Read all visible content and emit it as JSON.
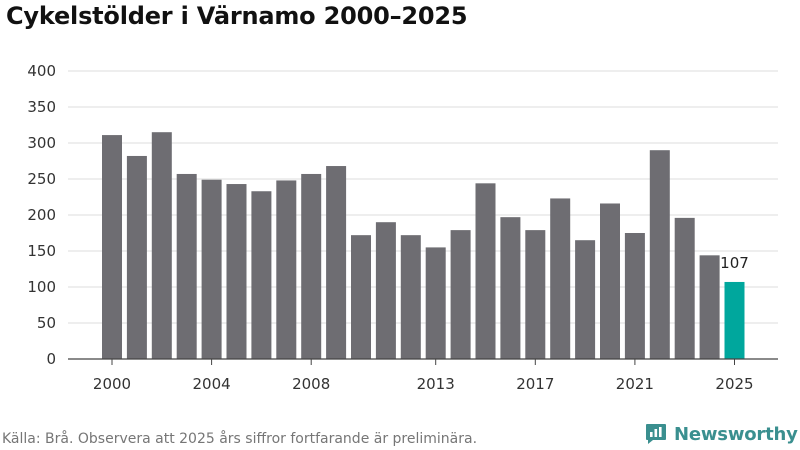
{
  "title": "Cykelstölder i Värnamo 2000–2025",
  "footer": {
    "source": "Källa: Brå. Observera att 2025 års siffror fortfarande är preliminära.",
    "brand": "Newsworthy",
    "brand_icon": "newsworthy-logo-icon",
    "brand_color": "#3a8f8f"
  },
  "chart_data": {
    "type": "bar",
    "title": "Cykelstölder i Värnamo 2000–2025",
    "xlabel": "",
    "ylabel": "",
    "ylim": [
      0,
      400
    ],
    "yticks": [
      0,
      50,
      100,
      150,
      200,
      250,
      300,
      350,
      400
    ],
    "xtick_labels": [
      "2000",
      "2004",
      "2008",
      "2013",
      "2017",
      "2021",
      "2025"
    ],
    "grid": true,
    "categories": [
      "2000",
      "2001",
      "2002",
      "2003",
      "2004",
      "2005",
      "2006",
      "2007",
      "2008",
      "2009",
      "2010",
      "2011",
      "2012",
      "2013",
      "2014",
      "2015",
      "2016",
      "2017",
      "2018",
      "2019",
      "2020",
      "2021",
      "2022",
      "2023",
      "2024",
      "2025"
    ],
    "values": [
      311,
      282,
      315,
      257,
      249,
      243,
      233,
      248,
      257,
      268,
      172,
      190,
      172,
      155,
      179,
      244,
      197,
      179,
      223,
      165,
      216,
      175,
      290,
      196,
      144,
      107
    ],
    "colors": {
      "bar": "#6e6d72",
      "highlight": "#00a79d",
      "grid": "#dddddd",
      "axis": "#444444"
    },
    "highlight_index": 25,
    "annotation": {
      "index": 25,
      "text": "107"
    }
  }
}
